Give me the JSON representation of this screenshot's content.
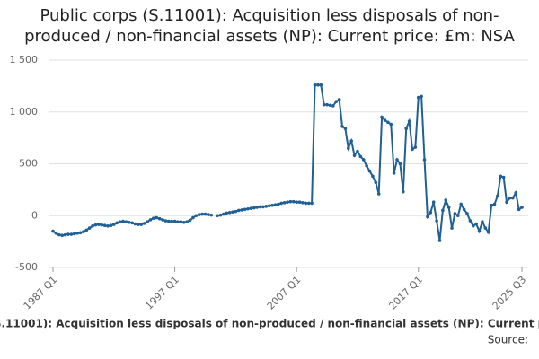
{
  "chart_data": {
    "type": "line",
    "title": "Public corps (S.11001): Acquisition less disposals of non-produced / non-financial assets (NP): Current price: £m: NSA",
    "source": "Source:",
    "categories": [
      "1987 Q1",
      null,
      null,
      null,
      null,
      null,
      null,
      null,
      null,
      null,
      null,
      null,
      null,
      null,
      null,
      null,
      null,
      null,
      null,
      null,
      null,
      null,
      null,
      null,
      null,
      null,
      null,
      null,
      null,
      null,
      null,
      null,
      null,
      null,
      null,
      null,
      null,
      null,
      null,
      null,
      "1997 Q1",
      null,
      null,
      null,
      null,
      null,
      null,
      null,
      null,
      null,
      null,
      null,
      null,
      null,
      null,
      null,
      null,
      null,
      null,
      null,
      null,
      null,
      null,
      null,
      null,
      null,
      null,
      null,
      null,
      null,
      null,
      null,
      null,
      null,
      null,
      null,
      null,
      null,
      null,
      null,
      "2007 Q1",
      null,
      null,
      null,
      null,
      null,
      null,
      null,
      null,
      null,
      null,
      null,
      null,
      null,
      null,
      null,
      null,
      null,
      null,
      null,
      null,
      null,
      null,
      null,
      null,
      null,
      null,
      null,
      null,
      null,
      null,
      null,
      null,
      null,
      null,
      null,
      null,
      null,
      null,
      null,
      "2017 Q1",
      null,
      null,
      null,
      null,
      null,
      null,
      null,
      null,
      null,
      null,
      null,
      null,
      null,
      null,
      null,
      null,
      null,
      null,
      null,
      null,
      null,
      null,
      null,
      null,
      null,
      null,
      null,
      null,
      null,
      null,
      null,
      null,
      null,
      "2025 Q3"
    ],
    "series": [
      {
        "name": "Public corps (S.11001): Acquisition less disposals of non-produced / non-financial assets (NP): Current price: £m: NSA",
        "color": "#206095",
        "values": [
          -150,
          -170,
          -185,
          -190,
          -185,
          -180,
          -180,
          -175,
          -170,
          -165,
          -155,
          -140,
          -120,
          -100,
          -90,
          -85,
          -90,
          -95,
          -100,
          -95,
          -85,
          -70,
          -60,
          -55,
          -60,
          -65,
          -70,
          -80,
          -85,
          -85,
          -75,
          -60,
          -40,
          -25,
          -20,
          -30,
          -40,
          -50,
          -55,
          -55,
          -55,
          -60,
          -60,
          -65,
          -60,
          -45,
          -20,
          0,
          10,
          15,
          15,
          10,
          5,
          null,
          0,
          5,
          15,
          25,
          30,
          35,
          40,
          50,
          55,
          60,
          65,
          70,
          75,
          80,
          85,
          85,
          90,
          95,
          100,
          105,
          110,
          120,
          125,
          130,
          135,
          135,
          130,
          130,
          125,
          120,
          120,
          120,
          1260,
          1260,
          1260,
          1070,
          1070,
          1065,
          1060,
          1100,
          1120,
          860,
          840,
          650,
          720,
          580,
          620,
          570,
          540,
          480,
          430,
          380,
          320,
          210,
          950,
          920,
          900,
          880,
          410,
          540,
          500,
          230,
          840,
          910,
          640,
          660,
          1140,
          1150,
          540,
          -10,
          30,
          130,
          -50,
          -240,
          50,
          150,
          80,
          -120,
          20,
          0,
          110,
          60,
          20,
          -50,
          -100,
          -80,
          -150,
          -60,
          -120,
          -160,
          100,
          110,
          190,
          380,
          370,
          130,
          170,
          170,
          220,
          60,
          80
        ]
      }
    ],
    "ylim": [
      -500,
      1500
    ],
    "yticks": [
      -500,
      0,
      500,
      {
        "value": 1000,
        "label": "1 000"
      },
      {
        "value": 1500,
        "label": "1 500"
      }
    ],
    "grid": true
  }
}
